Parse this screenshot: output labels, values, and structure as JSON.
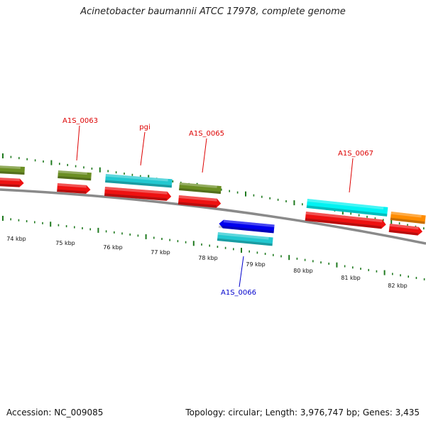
{
  "title": "Acinetobacter baumannii ATCC 17978, complete genome",
  "footer": {
    "accession": "Accession: NC_009085",
    "summary": "Topology: circular; Length: 3,976,747 bp; Genes: 3,435"
  },
  "colors": {
    "backbone": "#8a8a8a",
    "tick": "#1f7a1f",
    "forward_label": "#dd0000",
    "reverse_label": "#0000cc",
    "cds": "#ee1111",
    "gene_olive": "#6b8e23",
    "gene_cyan": "#22c8d0",
    "gene_cyan_bright": "#00f2f2",
    "gene_orange": "#ff8c00",
    "gene_blue": "#0000ee"
  },
  "map": {
    "scale_labels": [
      "74 kbp",
      "75 kbp",
      "76 kbp",
      "77 kbp",
      "78 kbp",
      "79 kbp",
      "80 kbp",
      "81 kbp",
      "82 kbp"
    ],
    "gene_labels": [
      {
        "id": "A1S_0063",
        "text": "A1S_0063",
        "strand": "forward"
      },
      {
        "id": "pgi",
        "text": "pgi",
        "strand": "forward"
      },
      {
        "id": "A1S_0065",
        "text": "A1S_0065",
        "strand": "forward"
      },
      {
        "id": "A1S_0066",
        "text": "A1S_0066",
        "strand": "reverse"
      },
      {
        "id": "A1S_0067",
        "text": "A1S_0067",
        "strand": "forward"
      }
    ]
  }
}
